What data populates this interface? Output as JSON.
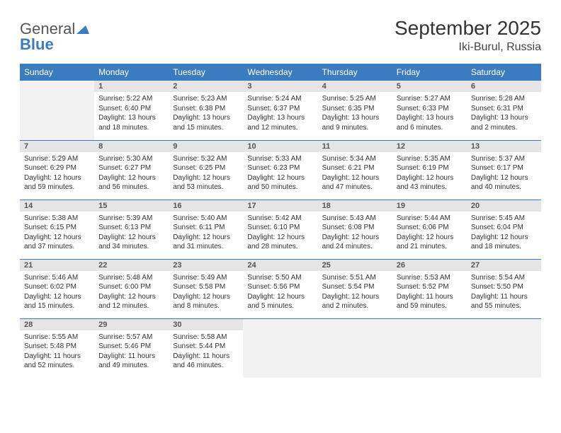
{
  "brand": {
    "word1": "General",
    "word2": "Blue"
  },
  "title": "September 2025",
  "subtitle": "Iki-Burul, Russia",
  "colors": {
    "header_bg": "#3b7bbf",
    "header_fg": "#ffffff",
    "daynum_bg": "#e5e5e5",
    "empty_bg": "#f2f2f2",
    "rule": "#3b7bbf",
    "text": "#333333"
  },
  "weekdays": [
    "Sunday",
    "Monday",
    "Tuesday",
    "Wednesday",
    "Thursday",
    "Friday",
    "Saturday"
  ],
  "weeks": [
    [
      {
        "empty": true
      },
      {
        "n": "1",
        "sr": "Sunrise: 5:22 AM",
        "ss": "Sunset: 6:40 PM",
        "d1": "Daylight: 13 hours",
        "d2": "and 18 minutes."
      },
      {
        "n": "2",
        "sr": "Sunrise: 5:23 AM",
        "ss": "Sunset: 6:38 PM",
        "d1": "Daylight: 13 hours",
        "d2": "and 15 minutes."
      },
      {
        "n": "3",
        "sr": "Sunrise: 5:24 AM",
        "ss": "Sunset: 6:37 PM",
        "d1": "Daylight: 13 hours",
        "d2": "and 12 minutes."
      },
      {
        "n": "4",
        "sr": "Sunrise: 5:25 AM",
        "ss": "Sunset: 6:35 PM",
        "d1": "Daylight: 13 hours",
        "d2": "and 9 minutes."
      },
      {
        "n": "5",
        "sr": "Sunrise: 5:27 AM",
        "ss": "Sunset: 6:33 PM",
        "d1": "Daylight: 13 hours",
        "d2": "and 6 minutes."
      },
      {
        "n": "6",
        "sr": "Sunrise: 5:28 AM",
        "ss": "Sunset: 6:31 PM",
        "d1": "Daylight: 13 hours",
        "d2": "and 2 minutes."
      }
    ],
    [
      {
        "n": "7",
        "sr": "Sunrise: 5:29 AM",
        "ss": "Sunset: 6:29 PM",
        "d1": "Daylight: 12 hours",
        "d2": "and 59 minutes."
      },
      {
        "n": "8",
        "sr": "Sunrise: 5:30 AM",
        "ss": "Sunset: 6:27 PM",
        "d1": "Daylight: 12 hours",
        "d2": "and 56 minutes."
      },
      {
        "n": "9",
        "sr": "Sunrise: 5:32 AM",
        "ss": "Sunset: 6:25 PM",
        "d1": "Daylight: 12 hours",
        "d2": "and 53 minutes."
      },
      {
        "n": "10",
        "sr": "Sunrise: 5:33 AM",
        "ss": "Sunset: 6:23 PM",
        "d1": "Daylight: 12 hours",
        "d2": "and 50 minutes."
      },
      {
        "n": "11",
        "sr": "Sunrise: 5:34 AM",
        "ss": "Sunset: 6:21 PM",
        "d1": "Daylight: 12 hours",
        "d2": "and 47 minutes."
      },
      {
        "n": "12",
        "sr": "Sunrise: 5:35 AM",
        "ss": "Sunset: 6:19 PM",
        "d1": "Daylight: 12 hours",
        "d2": "and 43 minutes."
      },
      {
        "n": "13",
        "sr": "Sunrise: 5:37 AM",
        "ss": "Sunset: 6:17 PM",
        "d1": "Daylight: 12 hours",
        "d2": "and 40 minutes."
      }
    ],
    [
      {
        "n": "14",
        "sr": "Sunrise: 5:38 AM",
        "ss": "Sunset: 6:15 PM",
        "d1": "Daylight: 12 hours",
        "d2": "and 37 minutes."
      },
      {
        "n": "15",
        "sr": "Sunrise: 5:39 AM",
        "ss": "Sunset: 6:13 PM",
        "d1": "Daylight: 12 hours",
        "d2": "and 34 minutes."
      },
      {
        "n": "16",
        "sr": "Sunrise: 5:40 AM",
        "ss": "Sunset: 6:11 PM",
        "d1": "Daylight: 12 hours",
        "d2": "and 31 minutes."
      },
      {
        "n": "17",
        "sr": "Sunrise: 5:42 AM",
        "ss": "Sunset: 6:10 PM",
        "d1": "Daylight: 12 hours",
        "d2": "and 28 minutes."
      },
      {
        "n": "18",
        "sr": "Sunrise: 5:43 AM",
        "ss": "Sunset: 6:08 PM",
        "d1": "Daylight: 12 hours",
        "d2": "and 24 minutes."
      },
      {
        "n": "19",
        "sr": "Sunrise: 5:44 AM",
        "ss": "Sunset: 6:06 PM",
        "d1": "Daylight: 12 hours",
        "d2": "and 21 minutes."
      },
      {
        "n": "20",
        "sr": "Sunrise: 5:45 AM",
        "ss": "Sunset: 6:04 PM",
        "d1": "Daylight: 12 hours",
        "d2": "and 18 minutes."
      }
    ],
    [
      {
        "n": "21",
        "sr": "Sunrise: 5:46 AM",
        "ss": "Sunset: 6:02 PM",
        "d1": "Daylight: 12 hours",
        "d2": "and 15 minutes."
      },
      {
        "n": "22",
        "sr": "Sunrise: 5:48 AM",
        "ss": "Sunset: 6:00 PM",
        "d1": "Daylight: 12 hours",
        "d2": "and 12 minutes."
      },
      {
        "n": "23",
        "sr": "Sunrise: 5:49 AM",
        "ss": "Sunset: 5:58 PM",
        "d1": "Daylight: 12 hours",
        "d2": "and 8 minutes."
      },
      {
        "n": "24",
        "sr": "Sunrise: 5:50 AM",
        "ss": "Sunset: 5:56 PM",
        "d1": "Daylight: 12 hours",
        "d2": "and 5 minutes."
      },
      {
        "n": "25",
        "sr": "Sunrise: 5:51 AM",
        "ss": "Sunset: 5:54 PM",
        "d1": "Daylight: 12 hours",
        "d2": "and 2 minutes."
      },
      {
        "n": "26",
        "sr": "Sunrise: 5:53 AM",
        "ss": "Sunset: 5:52 PM",
        "d1": "Daylight: 11 hours",
        "d2": "and 59 minutes."
      },
      {
        "n": "27",
        "sr": "Sunrise: 5:54 AM",
        "ss": "Sunset: 5:50 PM",
        "d1": "Daylight: 11 hours",
        "d2": "and 55 minutes."
      }
    ],
    [
      {
        "n": "28",
        "sr": "Sunrise: 5:55 AM",
        "ss": "Sunset: 5:48 PM",
        "d1": "Daylight: 11 hours",
        "d2": "and 52 minutes."
      },
      {
        "n": "29",
        "sr": "Sunrise: 5:57 AM",
        "ss": "Sunset: 5:46 PM",
        "d1": "Daylight: 11 hours",
        "d2": "and 49 minutes."
      },
      {
        "n": "30",
        "sr": "Sunrise: 5:58 AM",
        "ss": "Sunset: 5:44 PM",
        "d1": "Daylight: 11 hours",
        "d2": "and 46 minutes."
      },
      {
        "empty": true
      },
      {
        "empty": true
      },
      {
        "empty": true
      },
      {
        "empty": true
      }
    ]
  ]
}
